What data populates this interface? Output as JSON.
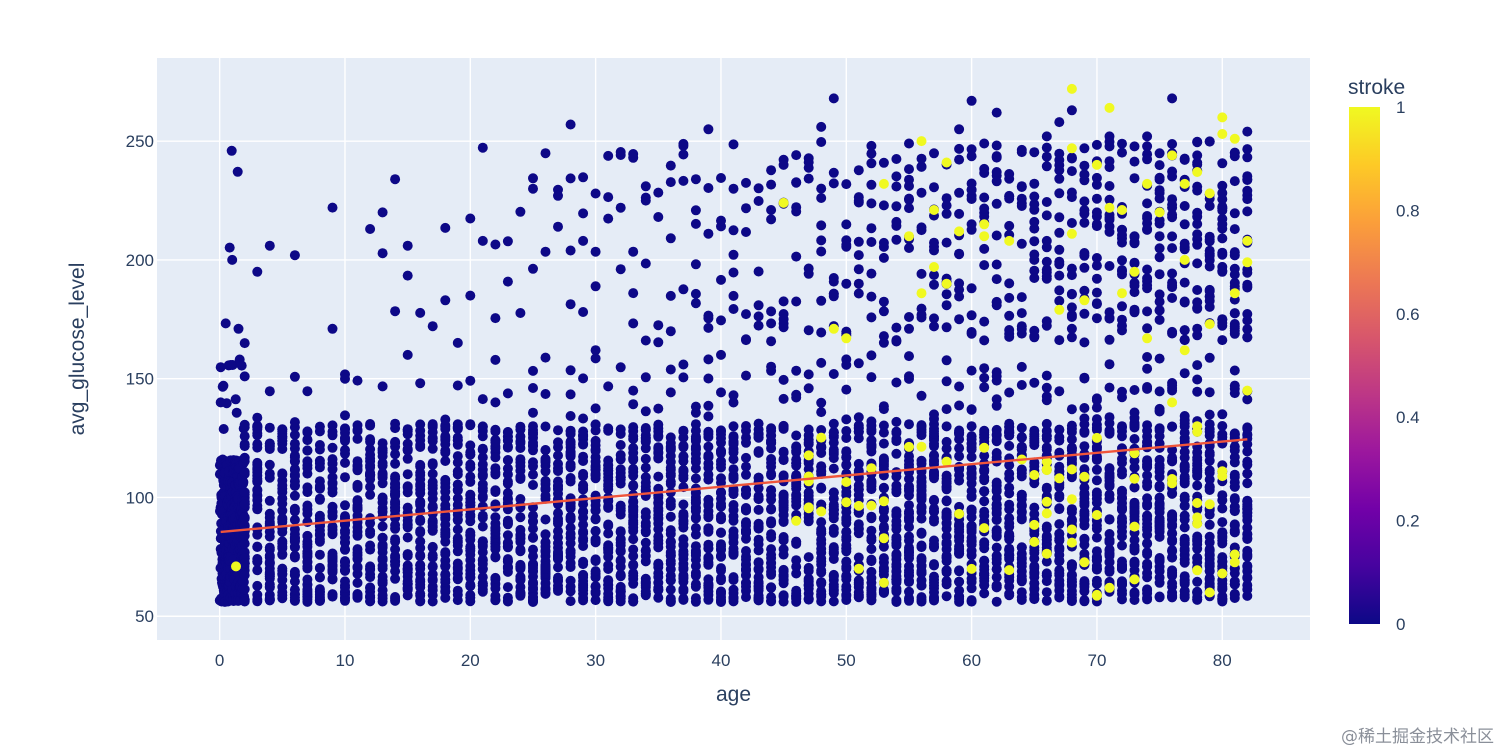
{
  "chart_data": {
    "type": "scatter",
    "title": "",
    "xlabel": "age",
    "ylabel": "avg_glucose_level",
    "xlim": [
      -5,
      87
    ],
    "ylim": [
      40,
      285
    ],
    "x_ticks": [
      0,
      10,
      20,
      30,
      40,
      50,
      60,
      70,
      80
    ],
    "y_ticks": [
      50,
      100,
      150,
      200,
      250
    ],
    "grid": true,
    "plot_bgcolor": "#E5ECF6",
    "color_by": "stroke",
    "colorbar": {
      "title": "stroke",
      "range": [
        0,
        1
      ],
      "ticks": [
        0,
        0.2,
        0.4,
        0.6,
        0.8,
        1
      ],
      "tick_labels": [
        "0",
        "0.2",
        "0.4",
        "0.6",
        "0.8",
        "1"
      ],
      "colorscale": [
        "#0d0887",
        "#46039f",
        "#7201a8",
        "#9c179e",
        "#bd3786",
        "#d8576b",
        "#ed7953",
        "#fb9f3a",
        "#fdca26",
        "#f0f921"
      ]
    },
    "trendline": {
      "color": "#EF553B",
      "x": [
        0.08,
        82
      ],
      "y": [
        85.5,
        124.5
      ]
    },
    "series": [
      {
        "name": "stroke=0",
        "color_value": 0,
        "point_count_approx": 4860,
        "density_by_age": "dense band between 55 and 130 at every age; sparse high-glucose points 150–270 increasing with age",
        "sample_points": [
          [
            0.08,
            140
          ],
          [
            0.3,
            147
          ],
          [
            1,
            200
          ],
          [
            1.5,
            171
          ],
          [
            2,
            165
          ],
          [
            3,
            195
          ],
          [
            4,
            206
          ],
          [
            6,
            202
          ],
          [
            9,
            171
          ],
          [
            12,
            213
          ],
          [
            13,
            220
          ],
          [
            14,
            234
          ],
          [
            15,
            206
          ],
          [
            18,
            183
          ],
          [
            20,
            185
          ],
          [
            21,
            208
          ],
          [
            25,
            230
          ],
          [
            27,
            227
          ],
          [
            28,
            257
          ],
          [
            29,
            208
          ],
          [
            32,
            222
          ],
          [
            33,
            243
          ],
          [
            34,
            231
          ],
          [
            37,
            248
          ],
          [
            38,
            234
          ],
          [
            39,
            255
          ],
          [
            41,
            230
          ],
          [
            44,
            221
          ],
          [
            45,
            240
          ],
          [
            48,
            256
          ],
          [
            49,
            268
          ],
          [
            52,
            248
          ],
          [
            55,
            249
          ],
          [
            59,
            255
          ],
          [
            60,
            267
          ],
          [
            62,
            262
          ],
          [
            66,
            252
          ],
          [
            67,
            258
          ],
          [
            68,
            263
          ],
          [
            71,
            252
          ],
          [
            74,
            252
          ],
          [
            76,
            268
          ],
          [
            78,
            244
          ],
          [
            82,
            254
          ],
          [
            10,
            150
          ],
          [
            15,
            160
          ],
          [
            22,
            140
          ],
          [
            30,
            162
          ],
          [
            36,
            170
          ],
          [
            40,
            160
          ],
          [
            45,
            175
          ],
          [
            50,
            190
          ],
          [
            55,
            205
          ],
          [
            60,
            215
          ],
          [
            65,
            200
          ],
          [
            70,
            220
          ],
          [
            75,
            210
          ],
          [
            80,
            195
          ],
          [
            5,
            125
          ],
          [
            10,
            120
          ],
          [
            20,
            118
          ],
          [
            30,
            115
          ],
          [
            40,
            125
          ],
          [
            50,
            128
          ],
          [
            60,
            130
          ],
          [
            70,
            133
          ],
          [
            80,
            135
          ]
        ]
      },
      {
        "name": "stroke=1",
        "color_value": 1,
        "point_count_approx": 249,
        "density_by_age": "mostly ages 45–82; both low (60–130) and high (170–272) glucose",
        "sample_points": [
          [
            1.3,
            71
          ],
          [
            45,
            224
          ],
          [
            49,
            171
          ],
          [
            50,
            167
          ],
          [
            51,
            70
          ],
          [
            53,
            232
          ],
          [
            55,
            210
          ],
          [
            56,
            250
          ],
          [
            56,
            186
          ],
          [
            57,
            221
          ],
          [
            57,
            197
          ],
          [
            58,
            241
          ],
          [
            58,
            190
          ],
          [
            59,
            212
          ],
          [
            61,
            210
          ],
          [
            61,
            215
          ],
          [
            63,
            208
          ],
          [
            64,
            116
          ],
          [
            66,
            115
          ],
          [
            67,
            179
          ],
          [
            68,
            272
          ],
          [
            68,
            211
          ],
          [
            68,
            247
          ],
          [
            69,
            183
          ],
          [
            70,
            240
          ],
          [
            70,
            59
          ],
          [
            71,
            264
          ],
          [
            71,
            222
          ],
          [
            72,
            221
          ],
          [
            72,
            186
          ],
          [
            73,
            195
          ],
          [
            74,
            232
          ],
          [
            74,
            167
          ],
          [
            75,
            220
          ],
          [
            76,
            244
          ],
          [
            76,
            140
          ],
          [
            76,
            106
          ],
          [
            77,
            200
          ],
          [
            77,
            232
          ],
          [
            77,
            162
          ],
          [
            78,
            237
          ],
          [
            78,
            130
          ],
          [
            78,
            89
          ],
          [
            79,
            228
          ],
          [
            79,
            173
          ],
          [
            79,
            60
          ],
          [
            80,
            260
          ],
          [
            80,
            253
          ],
          [
            80,
            109
          ],
          [
            80,
            68
          ],
          [
            81,
            251
          ],
          [
            81,
            186
          ],
          [
            81,
            76
          ],
          [
            82,
            208
          ],
          [
            82,
            199
          ],
          [
            82,
            145
          ]
        ]
      }
    ]
  },
  "watermark": "@稀土掘金技术社区"
}
